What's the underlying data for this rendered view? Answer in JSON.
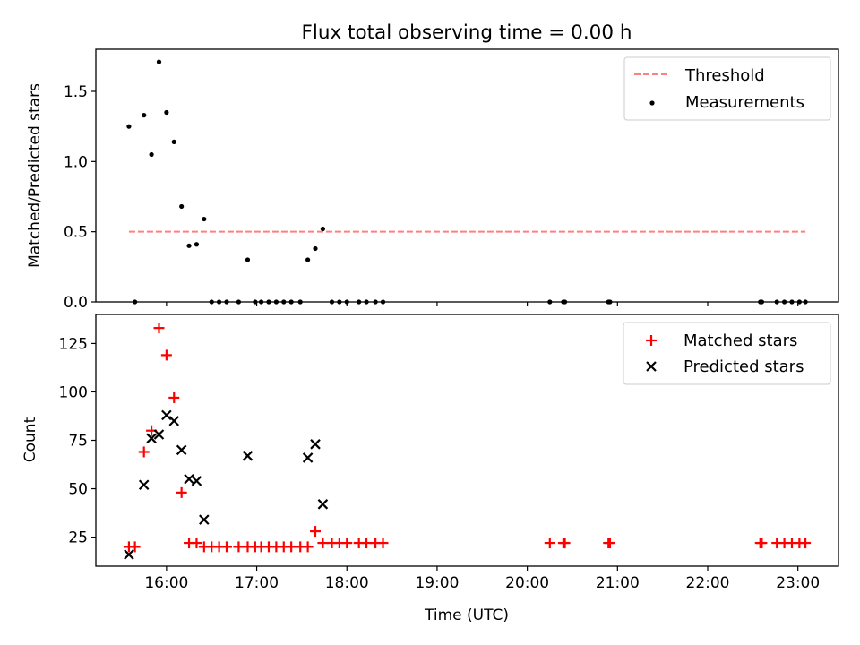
{
  "figure": {
    "title": "Flux total observing time = 0.00 h"
  },
  "chart_data": [
    {
      "type": "scatter",
      "title": "Flux total observing time = 0.00 h",
      "xlabel": "",
      "ylabel": "Matched/Predicted stars",
      "xlim": [
        "15:13",
        "23:27"
      ],
      "ylim": [
        0,
        1.8
      ],
      "yticks": [
        0.0,
        0.5,
        1.0,
        1.5
      ],
      "ytick_labels": [
        "0.0",
        "0.5",
        "1.0",
        "1.5"
      ],
      "grid": false,
      "legend_position": "top-right",
      "threshold": {
        "name": "Threshold",
        "color": "#ff7f7f",
        "style": "dashed",
        "y": 0.5,
        "x_start": "15:35",
        "x_end": "23:05"
      },
      "series": [
        {
          "name": "Measurements",
          "color": "#000000",
          "marker": "dot",
          "points": [
            [
              "15:35",
              1.25
            ],
            [
              "15:39",
              0.0
            ],
            [
              "15:45",
              1.33
            ],
            [
              "15:50",
              1.05
            ],
            [
              "15:55",
              1.71
            ],
            [
              "16:00",
              1.35
            ],
            [
              "16:05",
              1.14
            ],
            [
              "16:10",
              0.68
            ],
            [
              "16:15",
              0.4
            ],
            [
              "16:20",
              0.41
            ],
            [
              "16:25",
              0.59
            ],
            [
              "16:30",
              0.0
            ],
            [
              "16:35",
              0.0
            ],
            [
              "16:40",
              0.0
            ],
            [
              "16:48",
              0.0
            ],
            [
              "16:54",
              0.3
            ],
            [
              "16:59",
              0.0
            ],
            [
              "17:03",
              0.0
            ],
            [
              "17:08",
              0.0
            ],
            [
              "17:13",
              0.0
            ],
            [
              "17:18",
              0.0
            ],
            [
              "17:23",
              0.0
            ],
            [
              "17:29",
              0.0
            ],
            [
              "17:34",
              0.3
            ],
            [
              "17:39",
              0.38
            ],
            [
              "17:44",
              0.52
            ],
            [
              "17:50",
              0.0
            ],
            [
              "17:55",
              0.0
            ],
            [
              "18:00",
              0.0
            ],
            [
              "18:08",
              0.0
            ],
            [
              "18:13",
              0.0
            ],
            [
              "18:19",
              0.0
            ],
            [
              "18:24",
              0.0
            ],
            [
              "20:15",
              0.0
            ],
            [
              "20:24",
              0.0
            ],
            [
              "20:25",
              0.0
            ],
            [
              "20:54",
              0.0
            ],
            [
              "20:55",
              0.0
            ],
            [
              "22:35",
              0.0
            ],
            [
              "22:36",
              0.0
            ],
            [
              "22:46",
              0.0
            ],
            [
              "22:51",
              0.0
            ],
            [
              "22:56",
              0.0
            ],
            [
              "23:01",
              0.0
            ],
            [
              "23:05",
              0.0
            ]
          ]
        }
      ]
    },
    {
      "type": "scatter",
      "xlabel": "Time (UTC)",
      "ylabel": "Count",
      "xlim": [
        "15:13",
        "23:27"
      ],
      "ylim": [
        10,
        140
      ],
      "yticks": [
        25,
        50,
        75,
        100,
        125
      ],
      "ytick_labels": [
        "25",
        "50",
        "75",
        "100",
        "125"
      ],
      "xticks": [
        "16:00",
        "17:00",
        "18:00",
        "19:00",
        "20:00",
        "21:00",
        "22:00",
        "23:00"
      ],
      "grid": false,
      "legend_position": "top-right",
      "series": [
        {
          "name": "Matched stars",
          "color": "#ff0000",
          "marker": "plus",
          "points": [
            [
              "15:35",
              20
            ],
            [
              "15:39",
              20
            ],
            [
              "15:45",
              69
            ],
            [
              "15:50",
              80
            ],
            [
              "15:55",
              133
            ],
            [
              "16:00",
              119
            ],
            [
              "16:05",
              97
            ],
            [
              "16:10",
              48
            ],
            [
              "16:15",
              22
            ],
            [
              "16:20",
              22
            ],
            [
              "16:25",
              20
            ],
            [
              "16:30",
              20
            ],
            [
              "16:35",
              20
            ],
            [
              "16:40",
              20
            ],
            [
              "16:48",
              20
            ],
            [
              "16:54",
              20
            ],
            [
              "16:59",
              20
            ],
            [
              "17:03",
              20
            ],
            [
              "17:08",
              20
            ],
            [
              "17:13",
              20
            ],
            [
              "17:18",
              20
            ],
            [
              "17:23",
              20
            ],
            [
              "17:29",
              20
            ],
            [
              "17:34",
              20
            ],
            [
              "17:39",
              28
            ],
            [
              "17:44",
              22
            ],
            [
              "17:50",
              22
            ],
            [
              "17:55",
              22
            ],
            [
              "18:00",
              22
            ],
            [
              "18:08",
              22
            ],
            [
              "18:13",
              22
            ],
            [
              "18:19",
              22
            ],
            [
              "18:24",
              22
            ],
            [
              "20:15",
              22
            ],
            [
              "20:24",
              22
            ],
            [
              "20:25",
              22
            ],
            [
              "20:54",
              22
            ],
            [
              "20:55",
              22
            ],
            [
              "22:35",
              22
            ],
            [
              "22:36",
              22
            ],
            [
              "22:46",
              22
            ],
            [
              "22:51",
              22
            ],
            [
              "22:56",
              22
            ],
            [
              "23:01",
              22
            ],
            [
              "23:05",
              22
            ]
          ]
        },
        {
          "name": "Predicted stars",
          "color": "#000000",
          "marker": "x",
          "points": [
            [
              "15:35",
              16
            ],
            [
              "15:45",
              52
            ],
            [
              "15:50",
              76
            ],
            [
              "15:55",
              78
            ],
            [
              "16:00",
              88
            ],
            [
              "16:05",
              85
            ],
            [
              "16:10",
              70
            ],
            [
              "16:15",
              55
            ],
            [
              "16:20",
              54
            ],
            [
              "16:25",
              34
            ],
            [
              "16:54",
              67
            ],
            [
              "17:34",
              66
            ],
            [
              "17:39",
              73
            ],
            [
              "17:44",
              42
            ]
          ]
        }
      ]
    }
  ]
}
